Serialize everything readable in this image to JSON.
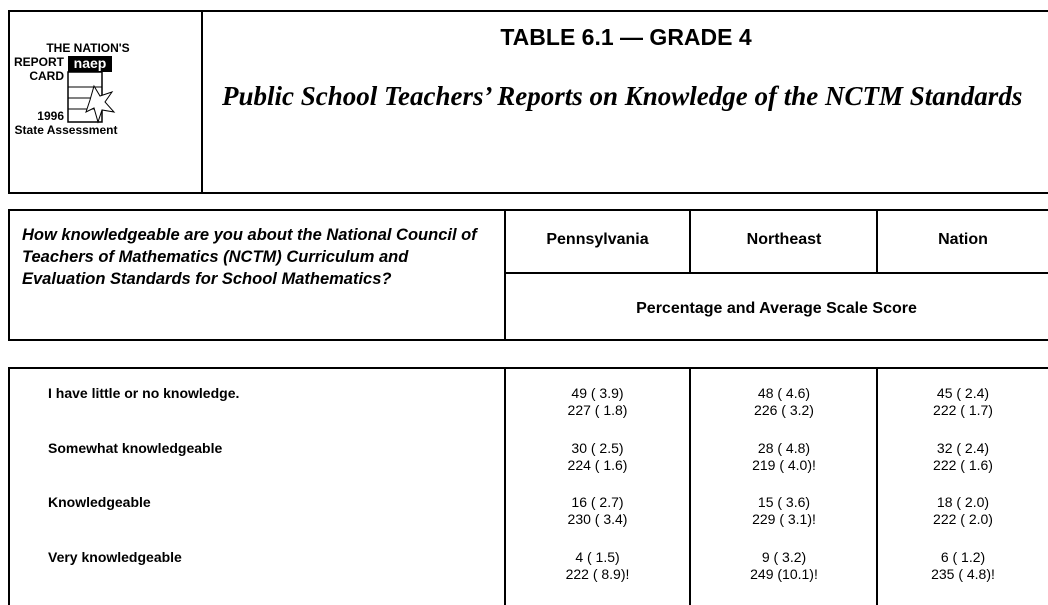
{
  "logo": {
    "line1": "THE NATION'S",
    "line2": "REPORT",
    "line3": "CARD",
    "brand": "naep",
    "year": "1996",
    "assessment": "State Assessment"
  },
  "header": {
    "title": "TABLE 6.1 — GRADE 4",
    "subtitle": "Public School Teachers’ Reports on Knowledge of the NCTM Standards"
  },
  "table": {
    "question": "How knowledgeable are you about the National Council of Teachers of Mathematics (NCTM) Curriculum and Evaluation Standards for School Mathematics?",
    "columns": [
      "Pennsylvania",
      "Northeast",
      "Nation"
    ],
    "subheader": "Percentage and Average Scale Score",
    "rows": [
      {
        "label": "I have little or no knowledge.",
        "cells": [
          [
            "49 ( 3.9)",
            "227 ( 1.8)"
          ],
          [
            "48 ( 4.6)",
            "226 ( 3.2)"
          ],
          [
            "45 ( 2.4)",
            "222 ( 1.7)"
          ]
        ]
      },
      {
        "label": "Somewhat knowledgeable",
        "cells": [
          [
            "30 ( 2.5)",
            "224 ( 1.6)"
          ],
          [
            "28 ( 4.8)",
            "219 ( 4.0)!"
          ],
          [
            "32 ( 2.4)",
            "222 ( 1.6)"
          ]
        ]
      },
      {
        "label": "Knowledgeable",
        "cells": [
          [
            "16 ( 2.7)",
            "230 ( 3.4)"
          ],
          [
            "15 ( 3.6)",
            "229 ( 3.1)!"
          ],
          [
            "18 ( 2.0)",
            "222 ( 2.0)"
          ]
        ]
      },
      {
        "label": "Very knowledgeable",
        "cells": [
          [
            "4 ( 1.5)",
            "222 ( 8.9)!"
          ],
          [
            "9 ( 3.2)",
            "249 (10.1)!"
          ],
          [
            "6 ( 1.2)",
            "235 ( 4.8)!"
          ]
        ]
      }
    ]
  }
}
